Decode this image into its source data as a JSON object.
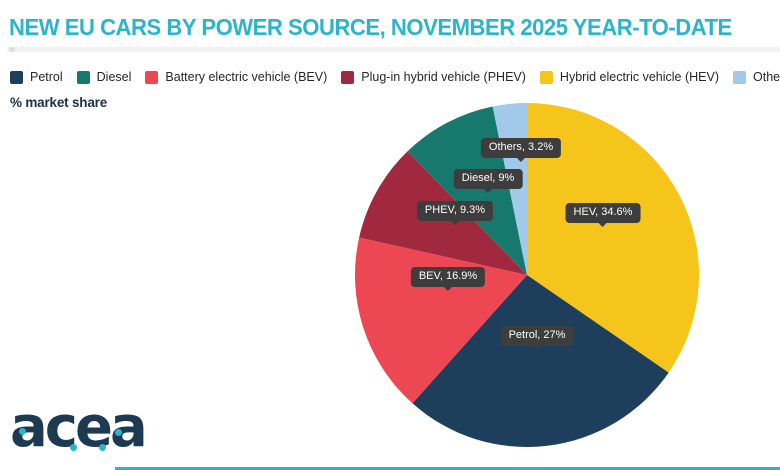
{
  "header": {
    "title": "NEW EU CARS BY POWER SOURCE, NOVEMBER 2025 YEAR-TO-DATE"
  },
  "unit_note": "% market share",
  "legend": {
    "items": [
      {
        "label": "Petrol",
        "color": "#1E3F5B"
      },
      {
        "label": "Diesel",
        "color": "#17796E"
      },
      {
        "label": "Battery electric vehicle (BEV)",
        "color": "#EE4754"
      },
      {
        "label": "Plug-in hybrid vehicle (PHEV)",
        "color": "#A02940"
      },
      {
        "label": "Hybrid electric vehicle (HEV)",
        "color": "#F5C51B"
      },
      {
        "label": "Others",
        "color": "#A3C9EA"
      }
    ]
  },
  "chart_data": {
    "type": "pie",
    "title": "NEW EU CARS BY POWER SOURCE, NOVEMBER 2025 YEAR-TO-DATE",
    "unit": "% market share",
    "start_angle": "12 o'clock, clockwise",
    "total": 100,
    "legend_position": "top",
    "slices": [
      {
        "name": "Hybrid electric vehicle (HEV)",
        "label": "HEV, 34.6%",
        "value": 34.6,
        "color": "#F5C51B"
      },
      {
        "name": "Petrol",
        "label": "Petrol, 27%",
        "value": 27,
        "color": "#1E3F5B"
      },
      {
        "name": "Battery electric vehicle (BEV)",
        "label": "BEV, 16.9%",
        "value": 16.9,
        "color": "#EE4754"
      },
      {
        "name": "Plug-in hybrid vehicle (PHEV)",
        "label": "PHEV, 9.3%",
        "value": 9.3,
        "color": "#A02940"
      },
      {
        "name": "Diesel",
        "label": "Diesel, 9%",
        "value": 9,
        "color": "#17796E"
      },
      {
        "name": "Others",
        "label": "Others, 3.2%",
        "value": 3.2,
        "color": "#A3C9EA"
      }
    ]
  },
  "branding": {
    "logo_text": "acea",
    "accent_color": "#2BB5C8"
  }
}
